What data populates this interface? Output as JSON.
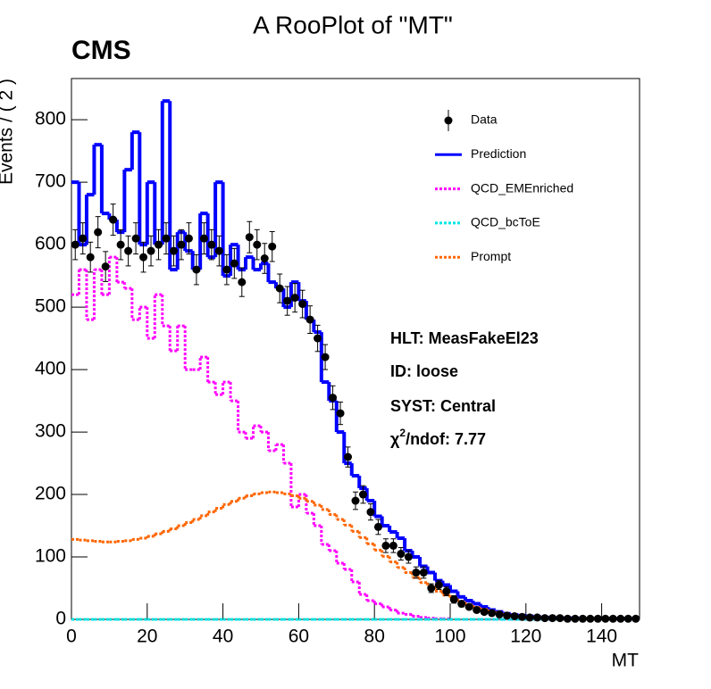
{
  "chart_data": {
    "type": "histogram",
    "title": "A RooPlot of \"MT\"",
    "label": "CMS",
    "x_label": "MT",
    "y_label": "Events / ( 2 )",
    "xlim": [
      0,
      150
    ],
    "ylim": [
      0,
      866
    ],
    "xticks": [
      0,
      20,
      40,
      60,
      80,
      100,
      120,
      140
    ],
    "yticks": [
      0,
      100,
      200,
      300,
      400,
      500,
      600,
      700,
      800
    ],
    "bins": [
      0,
      2,
      4,
      6,
      8,
      10,
      12,
      14,
      16,
      18,
      20,
      22,
      24,
      26,
      28,
      30,
      32,
      34,
      36,
      38,
      40,
      42,
      44,
      46,
      48,
      50,
      52,
      54,
      56,
      58,
      60,
      62,
      64,
      66,
      68,
      70,
      72,
      74,
      76,
      78,
      80,
      82,
      84,
      86,
      88,
      90,
      92,
      94,
      96,
      98,
      100,
      102,
      104,
      106,
      108,
      110,
      112,
      114,
      116,
      118,
      120,
      122,
      124,
      126,
      128,
      130,
      132,
      134,
      136,
      138,
      140,
      142,
      144,
      146,
      148,
      150
    ],
    "series": [
      {
        "name": "Data",
        "color": "#000000",
        "style": "points",
        "values": [
          600,
          610,
          580,
          620,
          565,
          640,
          600,
          590,
          610,
          580,
          590,
          600,
          610,
          590,
          600,
          610,
          560,
          610,
          600,
          590,
          560,
          570,
          540,
          612,
          600,
          578,
          597,
          530,
          510,
          515,
          505,
          480,
          450,
          420,
          355,
          330,
          260,
          190,
          200,
          172,
          148,
          118,
          118,
          105,
          100,
          75,
          75,
          50,
          55,
          45,
          32,
          25,
          20,
          15,
          12,
          10,
          8,
          6,
          5,
          4,
          3,
          3,
          2,
          2,
          2,
          1,
          1,
          1,
          1,
          1,
          1,
          1,
          1,
          1,
          1
        ],
        "errors": [
          24,
          25,
          24,
          25,
          24,
          25,
          24,
          24,
          25,
          24,
          24,
          24,
          25,
          24,
          24,
          25,
          24,
          25,
          24,
          24,
          24,
          24,
          23,
          25,
          24,
          24,
          24,
          23,
          23,
          23,
          22,
          22,
          21,
          20,
          19,
          18,
          16,
          14,
          14,
          13,
          12,
          11,
          11,
          10,
          10,
          9,
          9,
          7,
          7,
          7,
          6,
          5,
          4,
          4,
          3,
          3,
          3,
          2,
          2,
          2,
          2,
          2,
          1,
          1,
          1,
          1,
          1,
          1,
          1,
          1,
          1,
          1,
          1,
          1,
          1
        ]
      },
      {
        "name": "Prediction",
        "color": "#0000ff",
        "style": "solid",
        "values": [
          700,
          600,
          680,
          760,
          650,
          640,
          620,
          720,
          780,
          600,
          700,
          600,
          830,
          560,
          620,
          590,
          560,
          650,
          580,
          700,
          550,
          600,
          560,
          580,
          560,
          570,
          540,
          530,
          500,
          540,
          510,
          480,
          460,
          380,
          350,
          300,
          250,
          230,
          210,
          190,
          165,
          150,
          140,
          130,
          110,
          100,
          85,
          75,
          62,
          55,
          45,
          36,
          30,
          25,
          20,
          15,
          12,
          9,
          7,
          6,
          5,
          4,
          3,
          3,
          2,
          2,
          2,
          1,
          1,
          1,
          1,
          1,
          1,
          1,
          1
        ]
      },
      {
        "name": "QCD_EMEnriched",
        "color": "#ff00ff",
        "style": "dotted",
        "values": [
          520,
          560,
          480,
          560,
          520,
          580,
          540,
          530,
          480,
          500,
          450,
          520,
          470,
          430,
          470,
          400,
          400,
          420,
          380,
          360,
          380,
          350,
          300,
          290,
          310,
          300,
          270,
          280,
          250,
          180,
          200,
          170,
          150,
          120,
          110,
          90,
          80,
          60,
          40,
          30,
          25,
          20,
          15,
          10,
          8,
          5,
          3,
          2,
          1,
          1,
          0,
          0,
          0,
          0,
          0,
          0,
          0,
          0,
          0,
          0,
          0,
          0,
          0,
          0,
          0,
          0,
          0,
          0,
          0,
          0,
          0,
          0,
          0,
          0,
          0
        ]
      },
      {
        "name": "QCD_bcToE",
        "color": "#00e5e5",
        "style": "dotted",
        "values": [
          0,
          0,
          0,
          0,
          0,
          0,
          0,
          0,
          0,
          0,
          0,
          0,
          0,
          0,
          0,
          0,
          0,
          0,
          0,
          0,
          0,
          0,
          0,
          0,
          0,
          0,
          0,
          0,
          0,
          0,
          0,
          0,
          0,
          0,
          0,
          0,
          0,
          0,
          0,
          0,
          0,
          0,
          0,
          0,
          0,
          0,
          0,
          0,
          0,
          0,
          0,
          0,
          0,
          0,
          0,
          0,
          0,
          0,
          0,
          0,
          0,
          0,
          0,
          0,
          0,
          0,
          0,
          0,
          0,
          0,
          0,
          0,
          0,
          0,
          0
        ]
      },
      {
        "name": "Prompt",
        "color": "#ff6600",
        "style": "dotted",
        "values": [
          128,
          127,
          126,
          125,
          124,
          124,
          125,
          126,
          128,
          130,
          133,
          137,
          141,
          145,
          150,
          155,
          160,
          166,
          172,
          178,
          184,
          189,
          194,
          198,
          201,
          203,
          204,
          203,
          201,
          198,
          194,
          189,
          183,
          176,
          168,
          160,
          151,
          141,
          131,
          121,
          111,
          101,
          92,
          83,
          75,
          67,
          59,
          52,
          45,
          39,
          33,
          28,
          23,
          19,
          16,
          13,
          10,
          8,
          6,
          5,
          4,
          3,
          3,
          2,
          2,
          2,
          1,
          1,
          1,
          1,
          1,
          1,
          1,
          1,
          1
        ]
      }
    ],
    "annotations": [
      "HLT: MeasFakeEl23",
      "ID: loose",
      "SYST: Central"
    ],
    "chi2_label": {
      "symbol": "χ",
      "sup": "2",
      "text": "/ndof: 7.77"
    }
  }
}
